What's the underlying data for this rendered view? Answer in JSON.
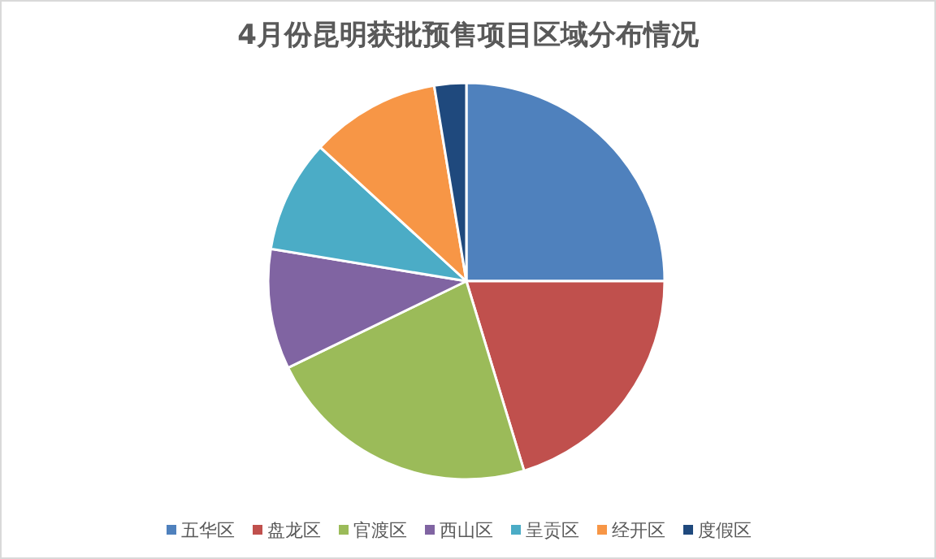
{
  "chart_data": {
    "type": "pie",
    "title": "4月份昆明获批预售项目区域分布情况",
    "categories": [
      "五华区",
      "盘龙区",
      "官渡区",
      "西山区",
      "呈贡区",
      "经开区",
      "度假区"
    ],
    "values": [
      25,
      20.3,
      22.5,
      9.8,
      9.2,
      10.6,
      2.6
    ],
    "colors": [
      "#4f81bd",
      "#c0504d",
      "#9bbb59",
      "#8064a2",
      "#4bacc6",
      "#f79646",
      "#1f497d"
    ],
    "legend": "bottom"
  }
}
